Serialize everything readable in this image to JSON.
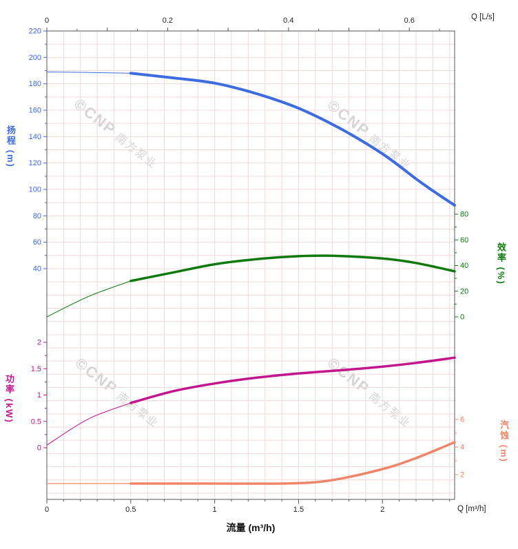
{
  "watermark": {
    "logo": "©CNP",
    "name": "南方泵业"
  },
  "style": {
    "grid_color": "#f0dada",
    "axis_color": "#555555",
    "x_tick_label_color": "#222222",
    "background": "#ffffff"
  },
  "chart_data": {
    "type": "line",
    "title": "",
    "grid": true,
    "x_range": [
      0,
      2.43
    ],
    "x_axes": {
      "top": {
        "title": "Q [L/s]",
        "unit": "L/s",
        "ticks": [
          0,
          0.2,
          0.4,
          0.6
        ],
        "minor_step": 0.05,
        "range": [
          0,
          0.675
        ],
        "factor_to_bottom": 3.6
      },
      "bottom": {
        "title": "Q [m³/h]",
        "unit": "m³/h",
        "xlabel": "流量 (m³/h)",
        "ticks": [
          0,
          0.5,
          1,
          1.5,
          2
        ],
        "minor_step": 0.1,
        "range": [
          0,
          2.43
        ]
      }
    },
    "y_axes": {
      "head": {
        "title": "扬程 (m)",
        "color": "#3d6be0",
        "side": "left",
        "ticks": [
          220,
          200,
          180,
          160,
          140,
          120,
          100,
          80,
          60,
          40
        ]
      },
      "efficiency": {
        "title": "效率 (%)",
        "color": "#0e7a0e",
        "side": "right",
        "ticks": [
          80,
          60,
          40,
          20,
          0
        ]
      },
      "power": {
        "title": "功率 (kW)",
        "color": "#c2158e",
        "side": "left",
        "ticks": [
          2,
          1.5,
          1,
          0.5,
          0
        ]
      },
      "npsh": {
        "title": "汽蚀 (m)",
        "color": "#f08568",
        "side": "right",
        "ticks": [
          6,
          4,
          2
        ]
      }
    },
    "series": [
      {
        "name": "head-curve",
        "label": "扬程 (m)",
        "axis": "head",
        "color": "#3d6be0",
        "solid_from": 0.5,
        "width": 4,
        "thin_width": 1,
        "points": [
          [
            0,
            189
          ],
          [
            0.25,
            188.6
          ],
          [
            0.5,
            188
          ],
          [
            0.75,
            184.5
          ],
          [
            1,
            180.5
          ],
          [
            1.25,
            172.5
          ],
          [
            1.5,
            161.5
          ],
          [
            1.75,
            146
          ],
          [
            2,
            127
          ],
          [
            2.2,
            108
          ],
          [
            2.3,
            99
          ],
          [
            2.43,
            88
          ]
        ]
      },
      {
        "name": "efficiency-curve",
        "label": "效率 (%)",
        "axis": "efficiency",
        "color": "#0e7a0e",
        "solid_from": 0.5,
        "width": 3.5,
        "thin_width": 1,
        "points": [
          [
            0,
            0
          ],
          [
            0.25,
            16
          ],
          [
            0.5,
            28
          ],
          [
            0.75,
            34.5
          ],
          [
            1,
            41
          ],
          [
            1.25,
            45
          ],
          [
            1.5,
            47.3
          ],
          [
            1.7,
            47.6
          ],
          [
            2,
            45.5
          ],
          [
            2.2,
            42
          ],
          [
            2.43,
            35.5
          ]
        ]
      },
      {
        "name": "power-curve",
        "label": "功率 (kW)",
        "axis": "power",
        "color": "#c2158e",
        "solid_from": 0.5,
        "width": 3.5,
        "thin_width": 1,
        "points": [
          [
            0,
            0.05
          ],
          [
            0.25,
            0.55
          ],
          [
            0.5,
            0.85
          ],
          [
            0.75,
            1.07
          ],
          [
            1,
            1.22
          ],
          [
            1.25,
            1.33
          ],
          [
            1.5,
            1.41
          ],
          [
            1.75,
            1.47
          ],
          [
            2,
            1.54
          ],
          [
            2.2,
            1.61
          ],
          [
            2.43,
            1.71
          ]
        ]
      },
      {
        "name": "npsh-curve",
        "label": "汽蚀 (m)",
        "axis": "npsh",
        "color": "#f08568",
        "solid_from": 0.5,
        "width": 3.5,
        "thin_width": 1.2,
        "points": [
          [
            0,
            1.35
          ],
          [
            0.5,
            1.35
          ],
          [
            1,
            1.35
          ],
          [
            1.45,
            1.36
          ],
          [
            1.7,
            1.6
          ],
          [
            2,
            2.4
          ],
          [
            2.2,
            3.2
          ],
          [
            2.43,
            4.35
          ]
        ]
      }
    ]
  }
}
